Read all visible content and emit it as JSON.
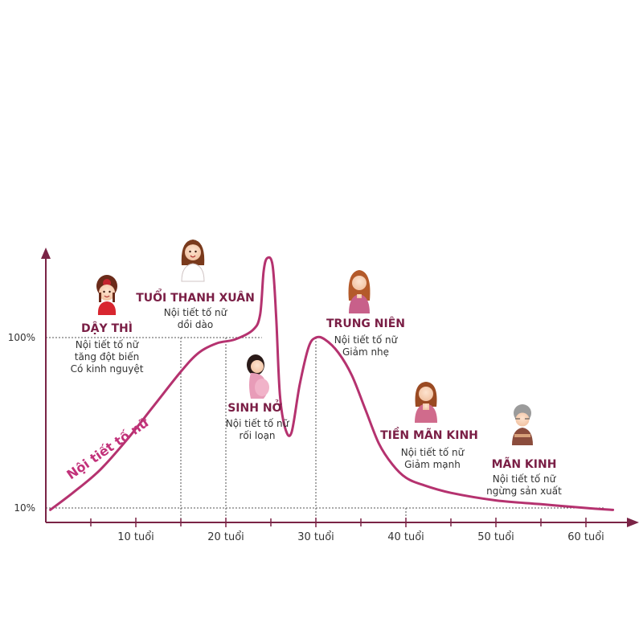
{
  "colors": {
    "axis": "#7a2446",
    "curve": "#b5326f",
    "title": "#7a1e45",
    "text": "#333333",
    "curve_label": "#c2327a",
    "guide": "#555555"
  },
  "chart_data": {
    "type": "line",
    "title": "",
    "xlabel": "",
    "ylabel": "",
    "curve_label": "Nội tiết tố nữ",
    "x_ticks": [
      {
        "value": 10,
        "label": "10 tuổi"
      },
      {
        "value": 20,
        "label": "20 tuổi"
      },
      {
        "value": 30,
        "label": "30 tuổi"
      },
      {
        "value": 40,
        "label": "40 tuổi"
      },
      {
        "value": 50,
        "label": "50 tuổi"
      },
      {
        "value": 60,
        "label": "60 tuổi"
      }
    ],
    "y_ticks": [
      {
        "value": 10,
        "label": "10%"
      },
      {
        "value": 100,
        "label": "100%"
      }
    ],
    "xlim": [
      0,
      64
    ],
    "ylim": [
      0,
      150
    ],
    "series": [
      {
        "name": "Nội tiết tố nữ",
        "points": [
          [
            0.5,
            9
          ],
          [
            3,
            18
          ],
          [
            6,
            30
          ],
          [
            9,
            46
          ],
          [
            12,
            64
          ],
          [
            15,
            82
          ],
          [
            17,
            92
          ],
          [
            19,
            97
          ],
          [
            21,
            99
          ],
          [
            23,
            104
          ],
          [
            23.8,
            112
          ],
          [
            24.2,
            135
          ],
          [
            24.6,
            142
          ],
          [
            25.2,
            138
          ],
          [
            25.6,
            110
          ],
          [
            26,
            70
          ],
          [
            26.6,
            52
          ],
          [
            27.3,
            50
          ],
          [
            28.2,
            75
          ],
          [
            29.2,
            95
          ],
          [
            30,
            100
          ],
          [
            31,
            99
          ],
          [
            32.5,
            92
          ],
          [
            34,
            80
          ],
          [
            35.5,
            62
          ],
          [
            37,
            44
          ],
          [
            38.5,
            33
          ],
          [
            40,
            26
          ],
          [
            42,
            22
          ],
          [
            45,
            18
          ],
          [
            50,
            14
          ],
          [
            55,
            12
          ],
          [
            60,
            10
          ],
          [
            63,
            9
          ]
        ]
      }
    ],
    "guides": [
      {
        "x": 15,
        "y": 100
      },
      {
        "x": 20,
        "y": 100
      },
      {
        "x": 30,
        "y": 100
      },
      {
        "x": 40,
        "y": 10
      },
      {
        "x": 0,
        "y": 100,
        "horizontal": true,
        "to_x": 24
      },
      {
        "x": 0,
        "y": 10,
        "horizontal": true,
        "to_x": 62
      }
    ],
    "stages": [
      {
        "key": "day-thi",
        "title": "DẬY THÌ",
        "lines": [
          "Nội tiết tố nữ",
          "tăng đột biến",
          "Có kinh nguyệt"
        ]
      },
      {
        "key": "tuoi-thanh-xuan",
        "title": "TUỔI THANH XUÂN",
        "lines": [
          "Nội tiết tố nữ",
          "dồi dào"
        ]
      },
      {
        "key": "sinh-no",
        "title": "SINH NỞ",
        "lines": [
          "Nội tiết tố nữ",
          "rối loạn"
        ]
      },
      {
        "key": "trung-nien",
        "title": "TRUNG NIÊN",
        "lines": [
          "Nội tiết tố nữ",
          "Giảm nhẹ"
        ]
      },
      {
        "key": "tien-man-kinh",
        "title": "TIỀN MÃN KINH",
        "lines": [
          "Nội tiết tố nữ",
          "Giảm mạnh"
        ]
      },
      {
        "key": "man-kinh",
        "title": "MÃN KINH",
        "lines": [
          "Nội tiết tố nữ",
          "ngừng sản xuất"
        ]
      }
    ]
  }
}
